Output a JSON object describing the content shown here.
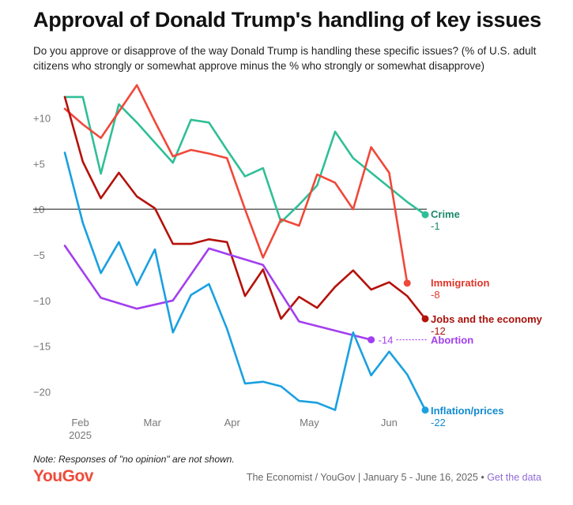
{
  "header": {
    "title": "Approval of Donald Trump's handling of key issues",
    "subtitle": "Do you approve or disapprove of the way Donald Trump is handling these specific issues? (% of U.S. adult citizens who strongly or somewhat approve minus the % who strongly or somewhat disapprove)"
  },
  "footer": {
    "note": "Note: Responses of \"no opinion\" are not shown.",
    "brand": "YouGov",
    "source": "The Economist / YouGov | January 5 - June 16, 2025",
    "separator": "•",
    "link": "Get the data"
  },
  "chart_data": {
    "type": "line",
    "title": "Approval of Donald Trump's handling of key issues",
    "xlabel": "",
    "ylabel": "",
    "ylim": [
      -23,
      14
    ],
    "grid": false,
    "y_ticks": [
      {
        "value": 10,
        "label": "+10"
      },
      {
        "value": 5,
        "label": "+5"
      },
      {
        "value": 0,
        "label": "±0"
      },
      {
        "value": -5,
        "label": "−5"
      },
      {
        "value": -10,
        "label": "−10"
      },
      {
        "value": -15,
        "label": "−15"
      },
      {
        "value": -20,
        "label": "−20"
      }
    ],
    "x_ticks": [
      {
        "date": "2025-02-01",
        "label": "Feb",
        "sublabel": "2025"
      },
      {
        "date": "2025-03-01",
        "label": "Mar",
        "sublabel": ""
      },
      {
        "date": "2025-04-01",
        "label": "Apr",
        "sublabel": ""
      },
      {
        "date": "2025-05-01",
        "label": "May",
        "sublabel": ""
      },
      {
        "date": "2025-06-01",
        "label": "Jun",
        "sublabel": ""
      }
    ],
    "series": [
      {
        "name": "Crime",
        "end_label": "-1",
        "color": "#2fbf96",
        "label_color": "#1a8a6a",
        "points": [
          [
            "2025-01-26",
            12.3
          ],
          [
            "2025-02-02",
            12.3
          ],
          [
            "2025-02-09",
            3.9
          ],
          [
            "2025-02-16",
            11.5
          ],
          [
            "2025-02-23",
            9.5
          ],
          [
            "2025-03-02",
            7.3
          ],
          [
            "2025-03-09",
            5.1
          ],
          [
            "2025-03-16",
            9.8
          ],
          [
            "2025-03-23",
            9.5
          ],
          [
            "2025-03-30",
            6.5
          ],
          [
            "2025-04-06",
            3.6
          ],
          [
            "2025-04-13",
            4.5
          ],
          [
            "2025-04-20",
            -1.4
          ],
          [
            "2025-04-27",
            0.5
          ],
          [
            "2025-05-04",
            2.6
          ],
          [
            "2025-05-11",
            8.5
          ],
          [
            "2025-05-18",
            5.6
          ],
          [
            "2025-05-25",
            4.0
          ],
          [
            "2025-06-01",
            2.4
          ],
          [
            "2025-06-08",
            0.8
          ],
          [
            "2025-06-15",
            -0.6
          ]
        ]
      },
      {
        "name": "Immigration",
        "end_label": "-8",
        "color": "#f0483a",
        "label_color": "#e0352a",
        "points": [
          [
            "2025-01-26",
            11.0
          ],
          [
            "2025-02-02",
            9.3
          ],
          [
            "2025-02-09",
            7.8
          ],
          [
            "2025-02-16",
            10.7
          ],
          [
            "2025-02-23",
            13.6
          ],
          [
            "2025-03-02",
            9.6
          ],
          [
            "2025-03-09",
            5.8
          ],
          [
            "2025-03-16",
            6.5
          ],
          [
            "2025-03-23",
            6.1
          ],
          [
            "2025-03-30",
            5.6
          ],
          [
            "2025-04-06",
            0.0
          ],
          [
            "2025-04-13",
            -5.3
          ],
          [
            "2025-04-20",
            -1.1
          ],
          [
            "2025-04-27",
            -1.8
          ],
          [
            "2025-05-04",
            3.8
          ],
          [
            "2025-05-11",
            2.9
          ],
          [
            "2025-05-18",
            0.0
          ],
          [
            "2025-05-25",
            6.8
          ],
          [
            "2025-06-01",
            4.0
          ],
          [
            "2025-06-08",
            -8.1
          ]
        ]
      },
      {
        "name": "Jobs and the economy",
        "end_label": "-12",
        "color": "#b5120c",
        "label_color": "#a8120c",
        "points": [
          [
            "2025-01-26",
            12.3
          ],
          [
            "2025-02-02",
            5.2
          ],
          [
            "2025-02-09",
            1.2
          ],
          [
            "2025-02-16",
            4.0
          ],
          [
            "2025-02-23",
            1.4
          ],
          [
            "2025-03-02",
            0.1
          ],
          [
            "2025-03-09",
            -3.8
          ],
          [
            "2025-03-16",
            -3.8
          ],
          [
            "2025-03-23",
            -3.3
          ],
          [
            "2025-03-30",
            -3.6
          ],
          [
            "2025-04-06",
            -9.5
          ],
          [
            "2025-04-13",
            -6.6
          ],
          [
            "2025-04-20",
            -12.0
          ],
          [
            "2025-04-27",
            -9.6
          ],
          [
            "2025-05-04",
            -10.8
          ],
          [
            "2025-05-11",
            -8.5
          ],
          [
            "2025-05-18",
            -6.7
          ],
          [
            "2025-05-25",
            -8.8
          ],
          [
            "2025-06-01",
            -8.0
          ],
          [
            "2025-06-08",
            -9.5
          ],
          [
            "2025-06-15",
            -12.0
          ]
        ]
      },
      {
        "name": "Abortion",
        "end_label": "-14",
        "color": "#a23ef0",
        "label_color": "#a23ef0",
        "points": [
          [
            "2025-01-26",
            -4.0
          ],
          [
            "2025-02-09",
            -9.7
          ],
          [
            "2025-02-23",
            -10.9
          ],
          [
            "2025-03-09",
            -10.0
          ],
          [
            "2025-03-23",
            -4.3
          ],
          [
            "2025-04-13",
            -6.1
          ],
          [
            "2025-04-27",
            -12.3
          ],
          [
            "2025-05-25",
            -14.3
          ]
        ]
      },
      {
        "name": "Inflation/prices",
        "end_label": "-22",
        "color": "#1aa0e0",
        "label_color": "#118ad0",
        "points": [
          [
            "2025-01-26",
            6.2
          ],
          [
            "2025-02-02",
            -1.5
          ],
          [
            "2025-02-09",
            -7.0
          ],
          [
            "2025-02-16",
            -3.6
          ],
          [
            "2025-02-23",
            -8.3
          ],
          [
            "2025-03-02",
            -4.4
          ],
          [
            "2025-03-09",
            -13.5
          ],
          [
            "2025-03-16",
            -9.4
          ],
          [
            "2025-03-23",
            -8.2
          ],
          [
            "2025-03-30",
            -13.1
          ],
          [
            "2025-04-06",
            -19.1
          ],
          [
            "2025-04-13",
            -18.9
          ],
          [
            "2025-04-20",
            -19.4
          ],
          [
            "2025-04-27",
            -21.0
          ],
          [
            "2025-05-04",
            -21.2
          ],
          [
            "2025-05-11",
            -22.0
          ],
          [
            "2025-05-18",
            -13.5
          ],
          [
            "2025-05-25",
            -18.2
          ],
          [
            "2025-06-01",
            -15.6
          ],
          [
            "2025-06-08",
            -18.1
          ],
          [
            "2025-06-15",
            -22.0
          ]
        ]
      }
    ]
  }
}
